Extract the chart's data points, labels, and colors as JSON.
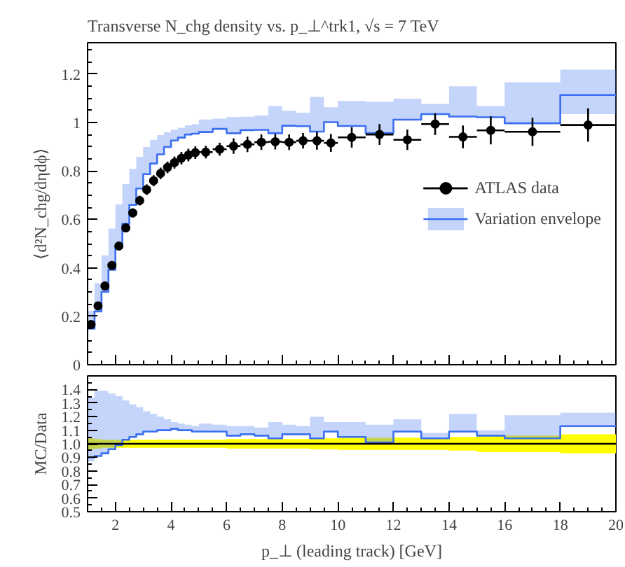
{
  "chart_data": [
    {
      "type": "step",
      "title": "Transverse N_chg density vs. p_⊥^trk1, √s = 7 TeV",
      "ylabel": "⟨d²N_chg/dηdϕ⟩",
      "xlim": [
        1,
        20
      ],
      "xticks": [
        2,
        4,
        6,
        8,
        10,
        12,
        14,
        16,
        18,
        20
      ],
      "ylim": [
        0,
        1.33
      ],
      "yticks": [
        0,
        0.2,
        0.4,
        0.6,
        0.8,
        1,
        1.2
      ],
      "tick_labels": "y",
      "grid": false,
      "legend": "right",
      "x": [
        1,
        1.25,
        1.5,
        1.75,
        2,
        2.25,
        2.5,
        2.75,
        3,
        3.25,
        3.5,
        3.75,
        4,
        4.25,
        4.5,
        4.75,
        5,
        5.5,
        6,
        6.5,
        7,
        7.5,
        8,
        8.5,
        9,
        9.5,
        10,
        11,
        12,
        13,
        14,
        15,
        16,
        18,
        20
      ],
      "series": [
        {
          "name": "Variation envelope",
          "color": "#3b6ff0",
          "values": [
            0.149,
            0.22,
            0.301,
            0.392,
            0.485,
            0.582,
            0.66,
            0.728,
            0.787,
            0.831,
            0.869,
            0.899,
            0.926,
            0.938,
            0.951,
            0.954,
            0.961,
            0.974,
            0.956,
            0.969,
            0.97,
            0.956,
            0.987,
            0.985,
            0.963,
            1.002,
            0.986,
            0.957,
            1.012,
            1.035,
            1.025,
            1.022,
            0.997,
            1.114,
            1.114
          ],
          "lower": [
            0.145,
            0.22,
            0.301,
            0.392,
            0.485,
            0.582,
            0.66,
            0.728,
            0.787,
            0.831,
            0.869,
            0.899,
            0.926,
            0.938,
            0.951,
            0.954,
            0.961,
            0.974,
            0.956,
            0.969,
            0.97,
            0.956,
            0.987,
            0.985,
            0.963,
            1.002,
            0.986,
            0.957,
            1.012,
            1.035,
            1.025,
            1.022,
            0.997,
            1.035,
            1.035
          ],
          "upper": [
            0.222,
            0.337,
            0.452,
            0.562,
            0.662,
            0.746,
            0.809,
            0.859,
            0.899,
            0.929,
            0.948,
            0.96,
            0.971,
            0.979,
            0.989,
            0.993,
            1.013,
            1.016,
            1.023,
            1.024,
            1.029,
            1.068,
            1.049,
            1.041,
            1.106,
            1.063,
            1.089,
            1.086,
            1.099,
            1.077,
            1.15,
            1.068,
            1.167,
            1.219,
            1.219
          ]
        },
        {
          "type": "scatter",
          "name": "ATLAS data",
          "color": "#000000",
          "marker": "circle",
          "x": [
            1.125,
            1.375,
            1.625,
            1.875,
            2.125,
            2.375,
            2.625,
            2.875,
            3.125,
            3.375,
            3.625,
            3.875,
            4.125,
            4.375,
            4.625,
            4.875,
            5.25,
            5.75,
            6.25,
            6.75,
            7.25,
            7.75,
            8.25,
            8.75,
            9.25,
            9.75,
            10.5,
            11.5,
            12.5,
            13.5,
            14.5,
            15.5,
            17,
            19
          ],
          "values": [
            0.166,
            0.243,
            0.325,
            0.41,
            0.49,
            0.565,
            0.627,
            0.678,
            0.723,
            0.76,
            0.79,
            0.815,
            0.835,
            0.853,
            0.866,
            0.876,
            0.878,
            0.89,
            0.903,
            0.91,
            0.919,
            0.921,
            0.919,
            0.925,
            0.925,
            0.916,
            0.939,
            0.951,
            0.929,
            0.994,
            0.941,
            0.968,
            0.962,
            0.99
          ],
          "errors": [
            0.007,
            0.009,
            0.01,
            0.012,
            0.015,
            0.017,
            0.019,
            0.02,
            0.022,
            0.023,
            0.024,
            0.024,
            0.025,
            0.026,
            0.026,
            0.026,
            0.026,
            0.027,
            0.032,
            0.032,
            0.032,
            0.032,
            0.032,
            0.032,
            0.037,
            0.037,
            0.042,
            0.043,
            0.042,
            0.045,
            0.047,
            0.058,
            0.058,
            0.069
          ],
          "xerrors": [
            0.125,
            0.125,
            0.125,
            0.125,
            0.125,
            0.125,
            0.125,
            0.125,
            0.125,
            0.125,
            0.125,
            0.125,
            0.125,
            0.125,
            0.125,
            0.125,
            0.25,
            0.25,
            0.25,
            0.25,
            0.25,
            0.25,
            0.25,
            0.25,
            0.25,
            0.25,
            0.5,
            0.5,
            0.5,
            0.5,
            0.5,
            0.5,
            1,
            1
          ]
        }
      ]
    },
    {
      "type": "step",
      "xlabel": "p_⊥ (leading track) [GeV]",
      "ylabel": "MC/Data",
      "xlim": [
        1,
        20
      ],
      "xticks": [
        2,
        4,
        6,
        8,
        10,
        12,
        14,
        16,
        18,
        20
      ],
      "ylim": [
        0.5,
        1.5
      ],
      "yticks": [
        0.5,
        0.6,
        0.7,
        0.8,
        0.9,
        {
          "value": 1,
          "label": "1.0"
        },
        1.1,
        1.2,
        1.3,
        1.4
      ],
      "grid": false,
      "x": [
        1,
        1.25,
        1.5,
        1.75,
        2,
        2.25,
        2.5,
        2.75,
        3,
        3.25,
        3.5,
        3.75,
        4,
        4.25,
        4.5,
        4.75,
        5,
        5.5,
        6,
        6.5,
        7,
        7.5,
        8,
        8.5,
        9,
        9.5,
        10,
        11,
        12,
        13,
        14,
        15,
        16,
        18,
        20
      ],
      "ref_lines": [
        {
          "axis": "y",
          "value": 1,
          "color": "#000000"
        }
      ],
      "series": [
        {
          "color": "#ffff00",
          "values": [
            null,
            null,
            null,
            null,
            null,
            null,
            null,
            null,
            null,
            null,
            null,
            null,
            null,
            null,
            null,
            null,
            null,
            null,
            null,
            null,
            null,
            null,
            null,
            null,
            null,
            null,
            null,
            null,
            null,
            null,
            null,
            null,
            null,
            null,
            null
          ],
          "lower": [
            0.96,
            0.965,
            0.97,
            0.97,
            0.97,
            0.97,
            0.97,
            0.97,
            0.97,
            0.97,
            0.97,
            0.97,
            0.97,
            0.97,
            0.97,
            0.97,
            0.97,
            0.97,
            0.965,
            0.965,
            0.965,
            0.965,
            0.965,
            0.965,
            0.96,
            0.96,
            0.955,
            0.955,
            0.955,
            0.955,
            0.95,
            0.94,
            0.94,
            0.93,
            0.93
          ],
          "upper": [
            1.04,
            1.035,
            1.03,
            1.03,
            1.03,
            1.03,
            1.03,
            1.03,
            1.03,
            1.03,
            1.03,
            1.03,
            1.03,
            1.03,
            1.03,
            1.03,
            1.03,
            1.03,
            1.035,
            1.035,
            1.035,
            1.035,
            1.035,
            1.035,
            1.04,
            1.04,
            1.045,
            1.045,
            1.045,
            1.045,
            1.05,
            1.06,
            1.06,
            1.07,
            1.07
          ]
        },
        {
          "color": "#3b6ff0",
          "values": [
            0.9,
            0.91,
            0.93,
            0.96,
            0.99,
            1.03,
            1.05,
            1.07,
            1.09,
            1.09,
            1.1,
            1.1,
            1.11,
            1.1,
            1.1,
            1.09,
            1.09,
            1.09,
            1.06,
            1.07,
            1.06,
            1.04,
            1.07,
            1.07,
            1.04,
            1.09,
            1.05,
            1.01,
            1.09,
            1.04,
            1.09,
            1.06,
            1.04,
            1.13,
            1.13
          ],
          "lower": [
            0.87,
            0.91,
            0.93,
            0.96,
            0.99,
            1.03,
            1.05,
            1.07,
            1.09,
            1.09,
            1.1,
            1.1,
            1.11,
            1.1,
            1.1,
            1.09,
            1.09,
            1.09,
            1.06,
            1.07,
            1.06,
            1.04,
            1.07,
            1.07,
            1.04,
            1.09,
            1.05,
            1.01,
            1.09,
            1.04,
            1.09,
            1.06,
            1.04,
            1.13,
            1.13
          ],
          "upper": [
            1.34,
            1.39,
            1.39,
            1.37,
            1.35,
            1.32,
            1.29,
            1.27,
            1.24,
            1.22,
            1.2,
            1.18,
            1.16,
            1.15,
            1.14,
            1.13,
            1.15,
            1.14,
            1.13,
            1.13,
            1.12,
            1.16,
            1.14,
            1.13,
            1.2,
            1.16,
            1.16,
            1.14,
            1.18,
            1.08,
            1.22,
            1.1,
            1.21,
            1.23,
            1.23
          ]
        }
      ]
    }
  ]
}
